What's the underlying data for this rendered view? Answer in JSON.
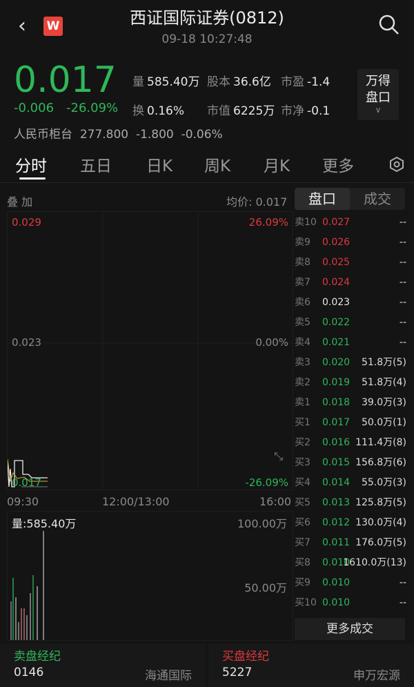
{
  "header": {
    "title": "西证国际证券(0812)",
    "time": "09-18 10:27:48",
    "back_icon": "chevron-left",
    "logo_text": "W",
    "search_icon": "search"
  },
  "quote": {
    "price": "0.017",
    "change": "-0.006",
    "change_pct": "-26.09%",
    "stats": [
      {
        "k": "量",
        "v": "585.40万"
      },
      {
        "k": "股本",
        "v": "36.6亿"
      },
      {
        "k": "市盈",
        "v": "-1.4"
      },
      {
        "k": "换",
        "v": "0.16%"
      },
      {
        "k": "市值",
        "v": "6225万"
      },
      {
        "k": "市净",
        "v": "-0.1"
      }
    ],
    "wind_button": [
      "万得",
      "盘口"
    ],
    "rmb": {
      "label": "人民币柜台",
      "price": "277.800",
      "change": "-1.800",
      "pct": "-0.06%"
    }
  },
  "tabs": [
    "分时",
    "五日",
    "日K",
    "周K",
    "月K",
    "更多"
  ],
  "chart": {
    "overlay": "叠 加",
    "avg": "均价: 0.017",
    "ymax": "0.029",
    "ymid": "0.023",
    "ymin_label": "0.017",
    "pmax": "26.09%",
    "pmid": "0.00%",
    "pmin": "-26.09%",
    "t0": "09:30",
    "t1": "12:00/13:00",
    "t2": "16:00",
    "vol_label": "量:585.40万",
    "vol_max": "100.00万",
    "vol_mid": "50.00万",
    "colors": {
      "up": "#e0383e",
      "down": "#2fb75a"
    }
  },
  "orderbook": {
    "tabs": [
      "盘口",
      "成交"
    ],
    "asks": [
      {
        "l": "卖10",
        "p": "0.027",
        "v": "--",
        "c": "r"
      },
      {
        "l": "卖9",
        "p": "0.026",
        "v": "--",
        "c": "r"
      },
      {
        "l": "卖8",
        "p": "0.025",
        "v": "--",
        "c": "r"
      },
      {
        "l": "卖7",
        "p": "0.024",
        "v": "--",
        "c": "r"
      },
      {
        "l": "卖6",
        "p": "0.023",
        "v": "--",
        "c": "w"
      },
      {
        "l": "卖5",
        "p": "0.022",
        "v": "--",
        "c": "g"
      },
      {
        "l": "卖4",
        "p": "0.021",
        "v": "--",
        "c": "g"
      },
      {
        "l": "卖3",
        "p": "0.020",
        "v": "51.8万(5)",
        "c": "g"
      },
      {
        "l": "卖2",
        "p": "0.019",
        "v": "51.8万(4)",
        "c": "g"
      },
      {
        "l": "卖1",
        "p": "0.018",
        "v": "39.0万(3)",
        "c": "g"
      }
    ],
    "bids": [
      {
        "l": "买1",
        "p": "0.017",
        "v": "50.0万(1)",
        "c": "g"
      },
      {
        "l": "买2",
        "p": "0.016",
        "v": "111.4万(8)",
        "c": "g"
      },
      {
        "l": "买3",
        "p": "0.015",
        "v": "156.8万(6)",
        "c": "g"
      },
      {
        "l": "买4",
        "p": "0.014",
        "v": "55.0万(3)",
        "c": "g"
      },
      {
        "l": "买5",
        "p": "0.013",
        "v": "125.8万(5)",
        "c": "g"
      },
      {
        "l": "买6",
        "p": "0.012",
        "v": "130.0万(4)",
        "c": "g"
      },
      {
        "l": "买7",
        "p": "0.011",
        "v": "176.0万(5)",
        "c": "g"
      },
      {
        "l": "买8",
        "p": "0.010",
        "v": "1610.0万(13)",
        "c": "g"
      },
      {
        "l": "买9",
        "p": "0.010",
        "v": "--",
        "c": "g"
      },
      {
        "l": "买10",
        "p": "0.010",
        "v": "--",
        "c": "g"
      }
    ],
    "more": "更多成交"
  },
  "brokers": {
    "sell": {
      "title": "卖盘经纪",
      "code": "0146",
      "name": "海通国际"
    },
    "buy": {
      "title": "买盘经纪",
      "code": "5227",
      "name": "申万宏源"
    }
  }
}
